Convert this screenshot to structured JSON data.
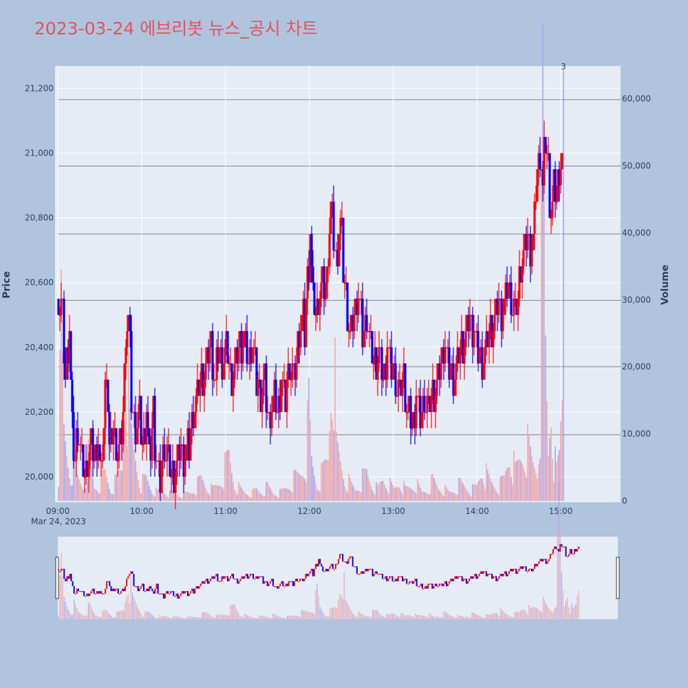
{
  "title": "2023-03-24 에브리봇 뉴스_공시 차트",
  "colors": {
    "up": "#ff0000",
    "down": "#0000ff",
    "background": "#b0c4de",
    "plot_bg": "#e5ecf6",
    "hline": "#808080"
  },
  "chart_data": {
    "type": "candlestick",
    "y_label": "Price",
    "y2_label": "Volume",
    "date_label": "Mar 24, 2023",
    "x_tick_labels": [
      "09:00",
      "10:00",
      "11:00",
      "12:00",
      "13:00",
      "14:00",
      "15:00"
    ],
    "y_tick_labels": [
      "20,000",
      "20,200",
      "20,400",
      "20,600",
      "20,800",
      "21,000",
      "21,200"
    ],
    "y2_tick_labels": [
      "0",
      "10,000",
      "20,000",
      "30,000",
      "40,000",
      "50,000",
      "60,000"
    ],
    "y_range": [
      19925,
      21265
    ],
    "y2_range": [
      0,
      65000
    ],
    "x_range_minutes": [
      0,
      394
    ],
    "annotation": {
      "text": "3",
      "minute": 367
    },
    "horizontal_lines": [
      20130,
      20340,
      20545,
      20750,
      20960,
      21165
    ],
    "price_path": [
      [
        0,
        20550
      ],
      [
        3,
        20500
      ],
      [
        5,
        20300
      ],
      [
        8,
        20450
      ],
      [
        10,
        20150
      ],
      [
        12,
        20050
      ],
      [
        14,
        20150
      ],
      [
        17,
        20050
      ],
      [
        20,
        20000
      ],
      [
        23,
        20100
      ],
      [
        26,
        20050
      ],
      [
        29,
        20100
      ],
      [
        31,
        20000
      ],
      [
        33,
        20150
      ],
      [
        35,
        20350
      ],
      [
        37,
        20100
      ],
      [
        40,
        20150
      ],
      [
        43,
        20050
      ],
      [
        45,
        20100
      ],
      [
        47,
        20200
      ],
      [
        49,
        20450
      ],
      [
        51,
        20500
      ],
      [
        53,
        20250
      ],
      [
        56,
        20150
      ],
      [
        59,
        20200
      ],
      [
        61,
        20100
      ],
      [
        64,
        20200
      ],
      [
        66,
        20050
      ],
      [
        69,
        20200
      ],
      [
        71,
        20050
      ],
      [
        74,
        20000
      ],
      [
        77,
        20100
      ],
      [
        80,
        20050
      ],
      [
        83,
        20000
      ],
      [
        86,
        20050
      ],
      [
        89,
        20100
      ],
      [
        92,
        20050
      ],
      [
        95,
        20100
      ],
      [
        98,
        20200
      ],
      [
        101,
        20250
      ],
      [
        104,
        20300
      ],
      [
        108,
        20350
      ],
      [
        111,
        20400
      ],
      [
        114,
        20300
      ],
      [
        117,
        20400
      ],
      [
        120,
        20350
      ],
      [
        123,
        20400
      ],
      [
        126,
        20300
      ],
      [
        129,
        20350
      ],
      [
        132,
        20400
      ],
      [
        135,
        20450
      ],
      [
        138,
        20350
      ],
      [
        141,
        20400
      ],
      [
        144,
        20300
      ],
      [
        147,
        20250
      ],
      [
        150,
        20300
      ],
      [
        153,
        20150
      ],
      [
        156,
        20250
      ],
      [
        159,
        20200
      ],
      [
        162,
        20300
      ],
      [
        165,
        20250
      ],
      [
        168,
        20350
      ],
      [
        171,
        20300
      ],
      [
        174,
        20400
      ],
      [
        177,
        20500
      ],
      [
        179,
        20450
      ],
      [
        181,
        20600
      ],
      [
        183,
        20750
      ],
      [
        185,
        20550
      ],
      [
        188,
        20500
      ],
      [
        191,
        20600
      ],
      [
        194,
        20550
      ],
      [
        196,
        20700
      ],
      [
        198,
        20850
      ],
      [
        200,
        20750
      ],
      [
        202,
        20650
      ],
      [
        205,
        20800
      ],
      [
        207,
        20650
      ],
      [
        209,
        20550
      ],
      [
        212,
        20450
      ],
      [
        215,
        20500
      ],
      [
        218,
        20550
      ],
      [
        221,
        20450
      ],
      [
        224,
        20500
      ],
      [
        227,
        20400
      ],
      [
        230,
        20350
      ],
      [
        233,
        20400
      ],
      [
        236,
        20300
      ],
      [
        239,
        20400
      ],
      [
        242,
        20350
      ],
      [
        245,
        20300
      ],
      [
        248,
        20250
      ],
      [
        251,
        20300
      ],
      [
        254,
        20200
      ],
      [
        257,
        20150
      ],
      [
        260,
        20250
      ],
      [
        263,
        20200
      ],
      [
        266,
        20250
      ],
      [
        269,
        20200
      ],
      [
        272,
        20250
      ],
      [
        275,
        20300
      ],
      [
        278,
        20350
      ],
      [
        281,
        20400
      ],
      [
        284,
        20350
      ],
      [
        287,
        20300
      ],
      [
        290,
        20350
      ],
      [
        293,
        20400
      ],
      [
        296,
        20450
      ],
      [
        299,
        20500
      ],
      [
        302,
        20450
      ],
      [
        305,
        20400
      ],
      [
        308,
        20350
      ],
      [
        311,
        20400
      ],
      [
        314,
        20450
      ],
      [
        317,
        20500
      ],
      [
        320,
        20550
      ],
      [
        323,
        20500
      ],
      [
        326,
        20600
      ],
      [
        329,
        20550
      ],
      [
        332,
        20500
      ],
      [
        335,
        20600
      ],
      [
        338,
        20700
      ],
      [
        341,
        20750
      ],
      [
        344,
        20700
      ],
      [
        346,
        20800
      ],
      [
        348,
        20950
      ],
      [
        350,
        21000
      ],
      [
        352,
        20900
      ],
      [
        354,
        21050
      ],
      [
        356,
        20950
      ],
      [
        358,
        20800
      ],
      [
        360,
        20900
      ],
      [
        362,
        20850
      ],
      [
        364,
        20950
      ],
      [
        366,
        21000
      ]
    ],
    "volume_path": [
      [
        0,
        6000
      ],
      [
        2,
        30000
      ],
      [
        4,
        12000
      ],
      [
        6,
        9000
      ],
      [
        9,
        5000
      ],
      [
        11,
        8000
      ],
      [
        14,
        4000
      ],
      [
        18,
        3000
      ],
      [
        22,
        8000
      ],
      [
        26,
        2500
      ],
      [
        30,
        3000
      ],
      [
        34,
        5000
      ],
      [
        38,
        2000
      ],
      [
        42,
        3500
      ],
      [
        46,
        6000
      ],
      [
        49,
        29000
      ],
      [
        52,
        12000
      ],
      [
        56,
        8000
      ],
      [
        60,
        3000
      ],
      [
        64,
        4000
      ],
      [
        68,
        2000
      ],
      [
        72,
        1500
      ],
      [
        76,
        2000
      ],
      [
        80,
        1200
      ],
      [
        84,
        1500
      ],
      [
        88,
        1000
      ],
      [
        92,
        1200
      ],
      [
        96,
        1500
      ],
      [
        100,
        2500
      ],
      [
        104,
        4000
      ],
      [
        108,
        2500
      ],
      [
        112,
        2000
      ],
      [
        116,
        3000
      ],
      [
        120,
        5000
      ],
      [
        124,
        8000
      ],
      [
        128,
        3000
      ],
      [
        132,
        2000
      ],
      [
        136,
        1500
      ],
      [
        140,
        1200
      ],
      [
        144,
        2000
      ],
      [
        148,
        1500
      ],
      [
        152,
        2500
      ],
      [
        156,
        1500
      ],
      [
        160,
        1200
      ],
      [
        164,
        2000
      ],
      [
        168,
        3000
      ],
      [
        172,
        4000
      ],
      [
        176,
        5000
      ],
      [
        180,
        8000
      ],
      [
        182,
        16000
      ],
      [
        184,
        7000
      ],
      [
        188,
        3000
      ],
      [
        192,
        5000
      ],
      [
        196,
        8000
      ],
      [
        198,
        24000
      ],
      [
        200,
        30000
      ],
      [
        202,
        9000
      ],
      [
        205,
        7000
      ],
      [
        208,
        4000
      ],
      [
        212,
        3000
      ],
      [
        216,
        2000
      ],
      [
        220,
        3500
      ],
      [
        224,
        5000
      ],
      [
        228,
        3000
      ],
      [
        232,
        2000
      ],
      [
        236,
        4000
      ],
      [
        240,
        3000
      ],
      [
        244,
        2000
      ],
      [
        248,
        3500
      ],
      [
        252,
        2000
      ],
      [
        256,
        2500
      ],
      [
        260,
        3000
      ],
      [
        264,
        1500
      ],
      [
        268,
        2000
      ],
      [
        272,
        3500
      ],
      [
        276,
        2500
      ],
      [
        280,
        2000
      ],
      [
        284,
        1500
      ],
      [
        288,
        2000
      ],
      [
        292,
        3000
      ],
      [
        296,
        2500
      ],
      [
        300,
        1800
      ],
      [
        304,
        2500
      ],
      [
        308,
        6000
      ],
      [
        312,
        4000
      ],
      [
        316,
        3000
      ],
      [
        320,
        2500
      ],
      [
        324,
        4000
      ],
      [
        328,
        9000
      ],
      [
        332,
        5000
      ],
      [
        336,
        8000
      ],
      [
        340,
        10000
      ],
      [
        344,
        7000
      ],
      [
        348,
        6000
      ],
      [
        350,
        18000
      ],
      [
        352,
        62000
      ],
      [
        354,
        26000
      ],
      [
        356,
        9000
      ],
      [
        358,
        20000
      ],
      [
        360,
        8000
      ],
      [
        362,
        5000
      ],
      [
        364,
        8000
      ],
      [
        366,
        20000
      ]
    ]
  }
}
